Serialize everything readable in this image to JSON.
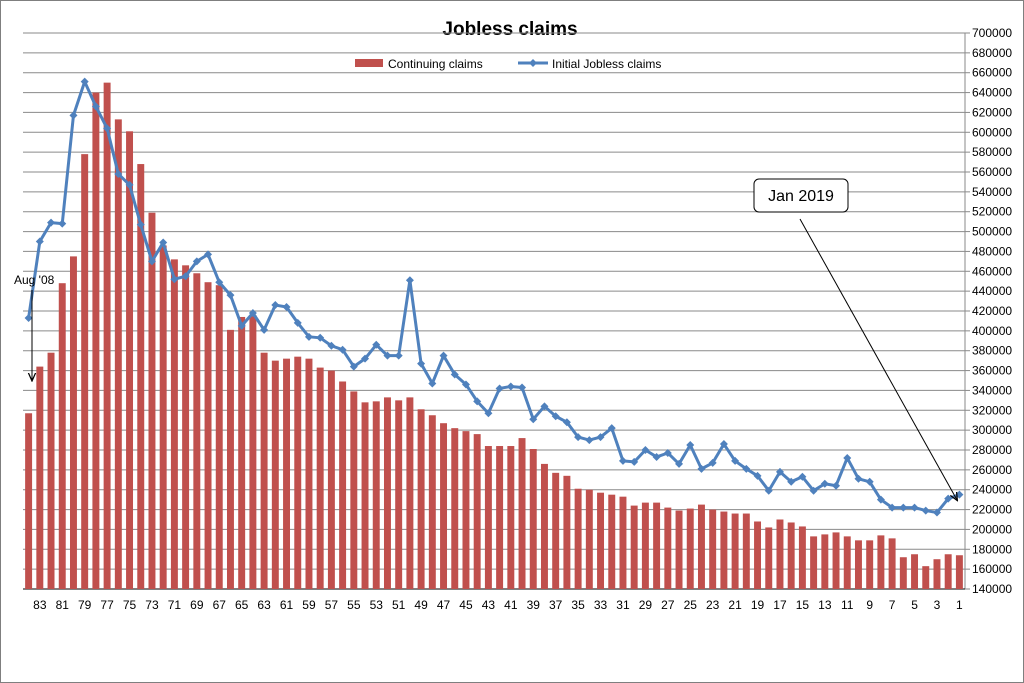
{
  "chart_data": {
    "type": "bar+line",
    "title": "Jobless claims",
    "xlabel": "",
    "ylabel": "",
    "ylim": [
      140000,
      700000
    ],
    "y_tick_step": 20000,
    "y_axis_side": "right",
    "grid": true,
    "legend_position": "top-center",
    "x_reversed": true,
    "x": [
      84,
      83,
      82,
      81,
      80,
      79,
      78,
      77,
      76,
      75,
      74,
      73,
      72,
      71,
      70,
      69,
      68,
      67,
      66,
      65,
      64,
      63,
      62,
      61,
      60,
      59,
      58,
      57,
      56,
      55,
      54,
      53,
      52,
      51,
      50,
      49,
      48,
      47,
      46,
      45,
      44,
      43,
      42,
      41,
      40,
      39,
      38,
      37,
      36,
      35,
      34,
      33,
      32,
      31,
      30,
      29,
      28,
      27,
      26,
      25,
      24,
      23,
      22,
      21,
      20,
      19,
      18,
      17,
      16,
      15,
      14,
      13,
      12,
      11,
      10,
      9,
      8,
      7,
      6,
      5,
      4,
      3,
      2,
      1
    ],
    "x_tick_labels": [
      83,
      81,
      79,
      77,
      75,
      73,
      71,
      69,
      67,
      65,
      63,
      61,
      59,
      57,
      55,
      53,
      51,
      49,
      47,
      45,
      43,
      41,
      39,
      37,
      35,
      33,
      31,
      29,
      27,
      25,
      23,
      21,
      19,
      17,
      15,
      13,
      11,
      9,
      7,
      5,
      3,
      1
    ],
    "series": [
      {
        "name": "Continuing claims",
        "kind": "bar",
        "color": "#C0504D",
        "values": [
          317000,
          364000,
          378000,
          448000,
          475000,
          578000,
          640000,
          650000,
          613000,
          601000,
          568000,
          519000,
          486000,
          472000,
          466000,
          458000,
          449000,
          446000,
          401000,
          414000,
          416000,
          378000,
          370000,
          372000,
          374000,
          372000,
          363000,
          360000,
          349000,
          339000,
          328000,
          329000,
          333000,
          330000,
          333000,
          321000,
          315000,
          307000,
          302000,
          299000,
          296000,
          284000,
          284000,
          284000,
          292000,
          281000,
          266000,
          257000,
          254000,
          241000,
          240000,
          237000,
          235000,
          233000,
          224000,
          227000,
          227000,
          222000,
          219000,
          221000,
          225000,
          220000,
          218000,
          216000,
          216000,
          208000,
          202000,
          210000,
          207000,
          203000,
          193000,
          195000,
          197000,
          193000,
          189000,
          189000,
          194000,
          191000,
          172000,
          175000,
          163000,
          170000,
          175000,
          174000
        ]
      },
      {
        "name": "Initial Jobless claims",
        "kind": "line",
        "color": "#4F81BD",
        "values": [
          413000,
          490000,
          509000,
          508000,
          617000,
          651000,
          626000,
          604000,
          558000,
          547000,
          507000,
          470000,
          489000,
          452000,
          455000,
          470000,
          477000,
          449000,
          436000,
          405000,
          418000,
          401000,
          426000,
          424000,
          408000,
          394000,
          393000,
          385000,
          381000,
          364000,
          372000,
          386000,
          375000,
          375000,
          451000,
          367000,
          347000,
          375000,
          356000,
          346000,
          329000,
          317000,
          342000,
          344000,
          343000,
          311000,
          324000,
          314000,
          308000,
          293000,
          290000,
          293000,
          302000,
          269000,
          268000,
          280000,
          273000,
          277000,
          266000,
          285000,
          261000,
          267000,
          286000,
          269000,
          261000,
          254000,
          239000,
          258000,
          248000,
          253000,
          239000,
          246000,
          244000,
          272000,
          251000,
          248000,
          230000,
          222000,
          222000,
          222000,
          219000,
          217000,
          231000,
          235000
        ]
      }
    ],
    "annotations": [
      {
        "text": "Aug '08",
        "points_to_x": 84,
        "boxed": false
      },
      {
        "text": "Jan 2019",
        "points_to_x": 1,
        "boxed": true
      }
    ]
  }
}
